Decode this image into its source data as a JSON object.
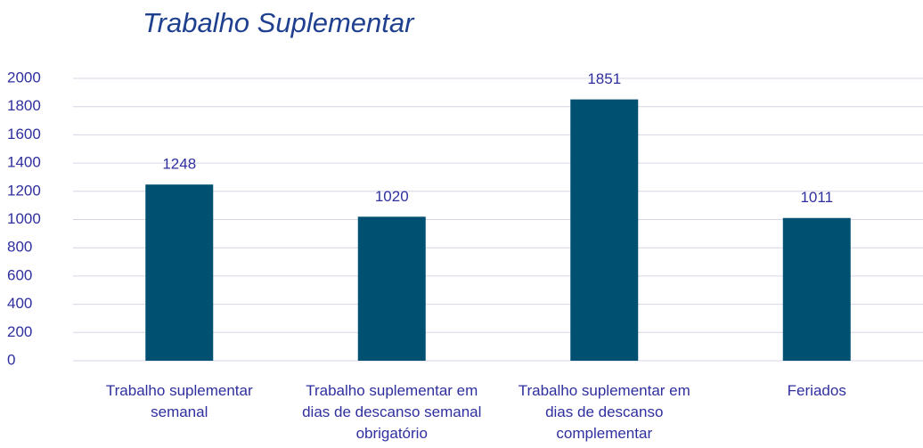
{
  "chart_data": {
    "type": "bar",
    "title": "Trabalho Suplementar",
    "categories": [
      "Trabalho suplementar semanal",
      "Trabalho suplementar em dias de descanso semanal obrigatório",
      "Trabalho suplementar em dias de descanso complementar",
      "Feriados"
    ],
    "values": [
      1248,
      1020,
      1851,
      1011
    ],
    "color": "#005072",
    "ylim": [
      0,
      2000
    ],
    "yticks": [
      0,
      200,
      400,
      600,
      800,
      1000,
      1200,
      1400,
      1600,
      1800,
      2000
    ],
    "grid": true
  }
}
